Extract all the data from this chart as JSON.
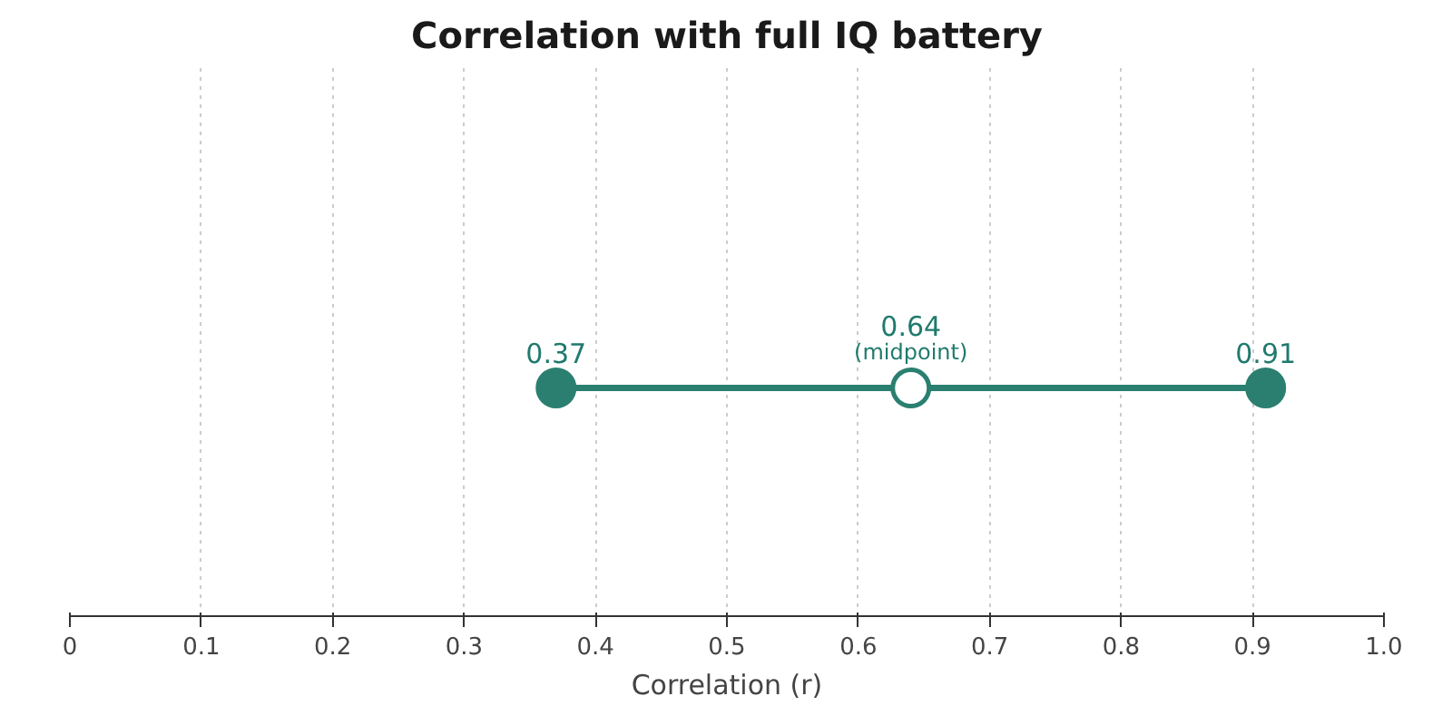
{
  "chart_data": {
    "type": "line",
    "orientation": "horizontal",
    "title": "Correlation with full IQ battery",
    "xlabel": "Correlation (r)",
    "categories": [
      null
    ],
    "series": [
      {
        "color": "#2a7f70",
        "values": [
          0.37
        ]
      },
      {
        "color": "#ffffff",
        "values": [
          0.64
        ]
      },
      {
        "color": "#2a7f70",
        "values": [
          0.91
        ]
      }
    ],
    "marker": "circle",
    "data_labels": true,
    "annotations": [
      "(midpoint)"
    ],
    "xlim": [
      0,
      1
    ],
    "xticks": [
      0,
      0.1,
      0.2,
      0.3,
      0.4,
      0.5,
      0.6,
      0.7,
      0.8,
      0.9,
      {
        "value": 1,
        "label": "1.0"
      }
    ],
    "grid": "x"
  }
}
